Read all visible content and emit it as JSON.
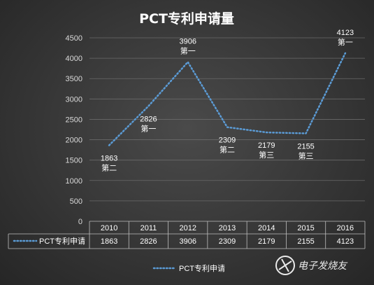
{
  "chart_data": {
    "type": "line",
    "title": "PCT专利申请量",
    "categories": [
      "2010",
      "2011",
      "2012",
      "2013",
      "2014",
      "2015",
      "2016"
    ],
    "series": [
      {
        "name": "PCT专利申请",
        "values": [
          1863,
          2826,
          3906,
          2309,
          2179,
          2155,
          4123
        ],
        "rank_labels": [
          "第二",
          "第一",
          "第一",
          "第二",
          "第三",
          "第三",
          "第一"
        ],
        "color": "#5b9bd5",
        "line_style": "dotted"
      }
    ],
    "ylim": [
      0,
      4500
    ],
    "yticks": [
      0,
      500,
      1000,
      1500,
      2000,
      2500,
      3000,
      3500,
      4000,
      4500
    ],
    "grid": true,
    "data_table": true,
    "legend_position": "bottom"
  },
  "watermark": {
    "text": "电子发烧友",
    "icon": "electron-logo-icon"
  },
  "colors": {
    "background": "#3a3a3a",
    "gridline": "#6a6a6a",
    "series": "#5b9bd5",
    "text": "#ffffff"
  }
}
